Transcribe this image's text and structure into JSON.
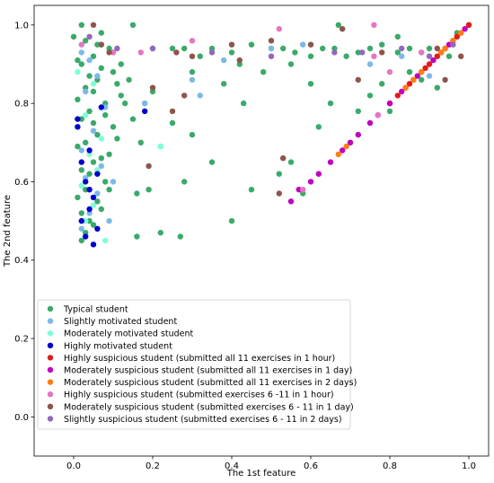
{
  "chart_data": {
    "type": "scatter",
    "xlabel": "The 1st feature",
    "ylabel": "The 2nd feature",
    "xlim": [
      -0.1,
      1.05
    ],
    "ylim": [
      -0.1,
      1.05
    ],
    "xticks": [
      "0.0",
      "0.2",
      "0.4",
      "0.6",
      "0.8",
      "1.0"
    ],
    "yticks": [
      "0.0",
      "0.2",
      "0.4",
      "0.6",
      "0.8",
      "1.0"
    ],
    "grid": false,
    "legend_position": "lower-left",
    "series": [
      {
        "name": "Typical student",
        "color": "#3aaa6a",
        "points": [
          [
            0.02,
            0.45
          ],
          [
            0.03,
            0.47
          ],
          [
            0.05,
            0.49
          ],
          [
            0.02,
            0.52
          ],
          [
            0.06,
            0.55
          ],
          [
            0.03,
            0.58
          ],
          [
            0.08,
            0.6
          ],
          [
            0.02,
            0.63
          ],
          [
            0.05,
            0.65
          ],
          [
            0.09,
            0.67
          ],
          [
            0.03,
            0.7
          ],
          [
            0.06,
            0.72
          ],
          [
            0.1,
            0.74
          ],
          [
            0.02,
            0.76
          ],
          [
            0.04,
            0.78
          ],
          [
            0.08,
            0.8
          ],
          [
            0.12,
            0.82
          ],
          [
            0.03,
            0.84
          ],
          [
            0.06,
            0.86
          ],
          [
            0.1,
            0.88
          ],
          [
            0.02,
            0.9
          ],
          [
            0.05,
            0.92
          ],
          [
            0.09,
            0.94
          ],
          [
            0.03,
            0.96
          ],
          [
            0.07,
            0.98
          ],
          [
            0.02,
            1.0
          ],
          [
            0.04,
            0.5
          ],
          [
            0.07,
            0.53
          ],
          [
            0.01,
            0.56
          ],
          [
            0.09,
            0.58
          ],
          [
            0.04,
            0.62
          ],
          [
            0.07,
            0.66
          ],
          [
            0.01,
            0.69
          ],
          [
            0.11,
            0.71
          ],
          [
            0.05,
            0.75
          ],
          [
            0.08,
            0.77
          ],
          [
            0.01,
            0.81
          ],
          [
            0.05,
            0.83
          ],
          [
            0.11,
            0.85
          ],
          [
            0.04,
            0.87
          ],
          [
            0.07,
            0.89
          ],
          [
            0.01,
            0.91
          ],
          [
            0.1,
            0.93
          ],
          [
            0.06,
            0.95
          ],
          [
            0.0,
            0.97
          ],
          [
            0.12,
            0.9
          ],
          [
            0.14,
            0.86
          ],
          [
            0.13,
            0.8
          ],
          [
            0.15,
            0.76
          ],
          [
            0.17,
            0.7
          ],
          [
            0.16,
            0.57
          ],
          [
            0.19,
            0.58
          ],
          [
            0.22,
            0.69
          ],
          [
            0.16,
            0.46
          ],
          [
            0.22,
            0.47
          ],
          [
            0.27,
            0.46
          ],
          [
            0.4,
            0.5
          ],
          [
            0.15,
            1.0
          ],
          [
            0.2,
            0.94
          ],
          [
            0.25,
            0.94
          ],
          [
            0.28,
            0.94
          ],
          [
            0.32,
            0.92
          ],
          [
            0.35,
            0.94
          ],
          [
            0.4,
            0.93
          ],
          [
            0.45,
            0.95
          ],
          [
            0.5,
            0.94
          ],
          [
            0.53,
            0.94
          ],
          [
            0.56,
            0.93
          ],
          [
            0.6,
            0.92
          ],
          [
            0.63,
            0.94
          ],
          [
            0.66,
            0.94
          ],
          [
            0.69,
            0.92
          ],
          [
            0.72,
            0.93
          ],
          [
            0.75,
            0.94
          ],
          [
            0.78,
            0.95
          ],
          [
            0.82,
            0.93
          ],
          [
            0.85,
            0.94
          ],
          [
            0.88,
            0.93
          ],
          [
            0.9,
            0.94
          ],
          [
            0.3,
            0.88
          ],
          [
            0.38,
            0.85
          ],
          [
            0.43,
            0.8
          ],
          [
            0.48,
            0.88
          ],
          [
            0.55,
            0.9
          ],
          [
            0.6,
            0.85
          ],
          [
            0.65,
            0.8
          ],
          [
            0.62,
            0.74
          ],
          [
            0.7,
            0.7
          ],
          [
            0.72,
            0.78
          ],
          [
            0.75,
            0.82
          ],
          [
            0.78,
            0.85
          ],
          [
            0.55,
            0.65
          ],
          [
            0.58,
            0.57
          ],
          [
            0.52,
            0.62
          ],
          [
            0.45,
            0.58
          ],
          [
            0.35,
            0.65
          ],
          [
            0.3,
            0.72
          ],
          [
            0.25,
            0.75
          ],
          [
            0.28,
            0.6
          ],
          [
            0.67,
            1.0
          ],
          [
            0.82,
            0.97
          ],
          [
            0.85,
            0.88
          ],
          [
            0.88,
            0.86
          ],
          [
            0.92,
            0.84
          ],
          [
            0.95,
            0.92
          ],
          [
            0.97,
            0.98
          ],
          [
            1.0,
            1.0
          ],
          [
            0.8,
            0.78
          ],
          [
            0.42,
            0.9
          ],
          [
            0.18,
            0.8
          ],
          [
            0.2,
            0.83
          ]
        ]
      },
      {
        "name": "Slightly motivated student",
        "color": "#7cb9e8",
        "points": [
          [
            0.02,
            0.48
          ],
          [
            0.04,
            0.52
          ],
          [
            0.06,
            0.57
          ],
          [
            0.03,
            0.61
          ],
          [
            0.07,
            0.64
          ],
          [
            0.02,
            0.68
          ],
          [
            0.05,
            0.73
          ],
          [
            0.08,
            0.79
          ],
          [
            0.03,
            0.83
          ],
          [
            0.06,
            0.87
          ],
          [
            0.04,
            0.91
          ],
          [
            0.07,
            0.95
          ],
          [
            0.02,
            0.93
          ],
          [
            0.1,
            0.6
          ],
          [
            0.09,
            0.5
          ],
          [
            0.18,
            0.8
          ],
          [
            0.3,
            0.86
          ],
          [
            0.32,
            0.82
          ],
          [
            0.5,
            0.94
          ],
          [
            0.75,
            0.9
          ],
          [
            0.83,
            0.92
          ],
          [
            0.9,
            0.87
          ],
          [
            0.58,
            0.95
          ],
          [
            0.38,
            0.91
          ]
        ]
      },
      {
        "name": "Moderately motivated student",
        "color": "#7fffd4",
        "points": [
          [
            0.03,
            0.5
          ],
          [
            0.05,
            0.54
          ],
          [
            0.02,
            0.59
          ],
          [
            0.06,
            0.63
          ],
          [
            0.04,
            0.67
          ],
          [
            0.07,
            0.71
          ],
          [
            0.03,
            0.77
          ],
          [
            0.05,
            0.85
          ],
          [
            0.22,
            0.69
          ],
          [
            0.08,
            0.45
          ],
          [
            0.01,
            0.88
          ]
        ]
      },
      {
        "name": "Highly motivated student",
        "color": "#0000cd",
        "points": [
          [
            0.05,
            0.44
          ],
          [
            0.03,
            0.46
          ],
          [
            0.06,
            0.48
          ],
          [
            0.02,
            0.5
          ],
          [
            0.04,
            0.53
          ],
          [
            0.05,
            0.56
          ],
          [
            0.03,
            0.6
          ],
          [
            0.06,
            0.62
          ],
          [
            0.02,
            0.65
          ],
          [
            0.04,
            0.68
          ],
          [
            0.01,
            0.74
          ],
          [
            0.01,
            0.76
          ],
          [
            0.07,
            0.79
          ],
          [
            0.04,
            0.58
          ],
          [
            0.18,
            0.78
          ]
        ]
      },
      {
        "name": "Highly suspicious student (submitted all 11 exercises in 1 hour)",
        "color": "#e31a1c",
        "points": [
          [
            0.8,
            0.8
          ],
          [
            0.82,
            0.82
          ],
          [
            0.84,
            0.84
          ],
          [
            0.86,
            0.86
          ],
          [
            0.88,
            0.88
          ],
          [
            0.9,
            0.9
          ],
          [
            0.92,
            0.92
          ],
          [
            0.94,
            0.94
          ],
          [
            0.96,
            0.96
          ],
          [
            0.98,
            0.98
          ],
          [
            1.0,
            1.0
          ],
          [
            0.85,
            0.85
          ],
          [
            0.89,
            0.89
          ],
          [
            0.93,
            0.93
          ],
          [
            0.97,
            0.97
          ]
        ]
      },
      {
        "name": "Moderately suspicious student (submitted all 11 exercises in 1 day)",
        "color": "#c000c0",
        "points": [
          [
            0.55,
            0.55
          ],
          [
            0.57,
            0.58
          ],
          [
            0.6,
            0.6
          ],
          [
            0.62,
            0.62
          ],
          [
            0.65,
            0.65
          ],
          [
            0.68,
            0.68
          ],
          [
            0.7,
            0.7
          ],
          [
            0.72,
            0.72
          ],
          [
            0.75,
            0.75
          ],
          [
            0.77,
            0.77
          ],
          [
            0.8,
            0.8
          ],
          [
            0.83,
            0.83
          ],
          [
            0.87,
            0.87
          ],
          [
            0.91,
            0.91
          ],
          [
            0.95,
            0.95
          ],
          [
            0.99,
            0.99
          ]
        ]
      },
      {
        "name": "Moderately suspicious student (submitted all 11 exercises in 2 days)",
        "color": "#ff7f0e",
        "points": [
          [
            0.67,
            0.67
          ],
          [
            0.69,
            0.69
          ],
          [
            0.84,
            0.84
          ],
          [
            0.86,
            0.86
          ],
          [
            0.88,
            0.88
          ],
          [
            0.93,
            0.93
          ],
          [
            0.94,
            0.94
          ],
          [
            0.96,
            0.96
          ],
          [
            0.98,
            0.98
          ]
        ]
      },
      {
        "name": "Highly suspicious student (submitted exercises 6 -11 in 1 hour)",
        "color": "#e377c2",
        "points": [
          [
            0.02,
            0.95
          ],
          [
            0.17,
            0.93
          ],
          [
            0.3,
            0.96
          ],
          [
            0.52,
            0.99
          ],
          [
            0.76,
            1.0
          ],
          [
            0.76,
            0.92
          ],
          [
            0.8,
            0.88
          ],
          [
            0.88,
            0.93
          ],
          [
            0.77,
            0.77
          ],
          [
            0.58,
            0.58
          ],
          [
            0.1,
            0.93
          ]
        ]
      },
      {
        "name": "Moderately suspicious student (submitted exercises 6 - 11 in 1 day)",
        "color": "#8c564b",
        "points": [
          [
            0.05,
            1.0
          ],
          [
            0.07,
            0.95
          ],
          [
            0.09,
            0.93
          ],
          [
            0.2,
            0.84
          ],
          [
            0.25,
            0.78
          ],
          [
            0.28,
            0.82
          ],
          [
            0.3,
            0.92
          ],
          [
            0.4,
            0.95
          ],
          [
            0.42,
            0.91
          ],
          [
            0.5,
            0.96
          ],
          [
            0.52,
            0.57
          ],
          [
            0.53,
            0.66
          ],
          [
            0.6,
            0.95
          ],
          [
            0.68,
            0.99
          ],
          [
            0.72,
            0.86
          ],
          [
            0.78,
            0.93
          ],
          [
            0.92,
            0.94
          ],
          [
            0.94,
            0.86
          ],
          [
            0.98,
            0.92
          ],
          [
            0.19,
            0.64
          ],
          [
            0.26,
            0.93
          ]
        ]
      },
      {
        "name": "Slightly suspicious student (submitted exercises 6 - 11 in 2 days)",
        "color": "#9467bd",
        "points": [
          [
            0.04,
            0.97
          ],
          [
            0.11,
            0.94
          ],
          [
            0.2,
            0.94
          ],
          [
            0.35,
            0.93
          ],
          [
            0.5,
            0.92
          ],
          [
            0.66,
            0.93
          ],
          [
            0.83,
            0.94
          ],
          [
            0.9,
            0.92
          ],
          [
            0.96,
            0.95
          ],
          [
            0.73,
            0.93
          ]
        ]
      }
    ]
  }
}
